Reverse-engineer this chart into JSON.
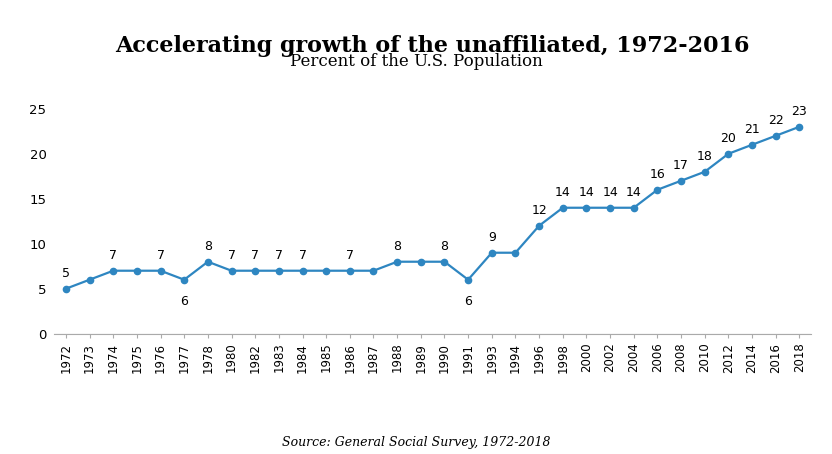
{
  "title": "Accelerating growth of the unaffiliated, 1972-2016",
  "subtitle": "Percent of the U.S. Population",
  "source": "Source: General Social Survey, 1972-2018",
  "years": [
    1972,
    1973,
    1974,
    1975,
    1976,
    1977,
    1978,
    1980,
    1982,
    1983,
    1984,
    1985,
    1986,
    1987,
    1988,
    1989,
    1990,
    1991,
    1993,
    1994,
    1996,
    1998,
    2000,
    2002,
    2004,
    2006,
    2008,
    2010,
    2012,
    2014,
    2016,
    2018
  ],
  "values": [
    5,
    6,
    7,
    7,
    7,
    6,
    8,
    7,
    7,
    7,
    7,
    7,
    7,
    7,
    8,
    8,
    8,
    6,
    9,
    9,
    12,
    14,
    14,
    14,
    14,
    16,
    17,
    18,
    20,
    21,
    22,
    23
  ],
  "x_tick_labels": [
    "1972",
    "1973",
    "1974",
    "1975",
    "1976",
    "1977",
    "1978",
    "1980",
    "1982",
    "1983",
    "1984",
    "1985",
    "1986",
    "1987",
    "1988",
    "1989",
    "1990",
    "1991",
    "1993",
    "1994",
    "1996",
    "1998",
    "2000",
    "2002",
    "2004",
    "2006",
    "2008",
    "2010",
    "2012",
    "2014",
    "2016",
    "2018"
  ],
  "show_label": [
    true,
    false,
    true,
    false,
    true,
    true,
    true,
    true,
    true,
    true,
    true,
    false,
    true,
    false,
    true,
    false,
    true,
    true,
    true,
    false,
    true,
    true,
    true,
    true,
    true,
    true,
    true,
    true,
    true,
    true,
    true,
    true
  ],
  "label_below": [
    false,
    false,
    false,
    false,
    false,
    true,
    false,
    false,
    false,
    false,
    false,
    false,
    false,
    false,
    false,
    false,
    false,
    true,
    false,
    false,
    false,
    false,
    false,
    false,
    false,
    false,
    false,
    false,
    false,
    false,
    false,
    false
  ],
  "y_ticks": [
    0,
    5,
    10,
    15,
    20,
    25
  ],
  "ylim": [
    0,
    27
  ],
  "xlim": [
    -0.5,
    31.5
  ],
  "line_color": "#2e86c1",
  "marker_color": "#2e86c1",
  "background_color": "#ffffff",
  "title_fontsize": 16,
  "subtitle_fontsize": 12,
  "source_fontsize": 9,
  "label_fontsize": 9,
  "axis_tick_fontsize": 8.5
}
